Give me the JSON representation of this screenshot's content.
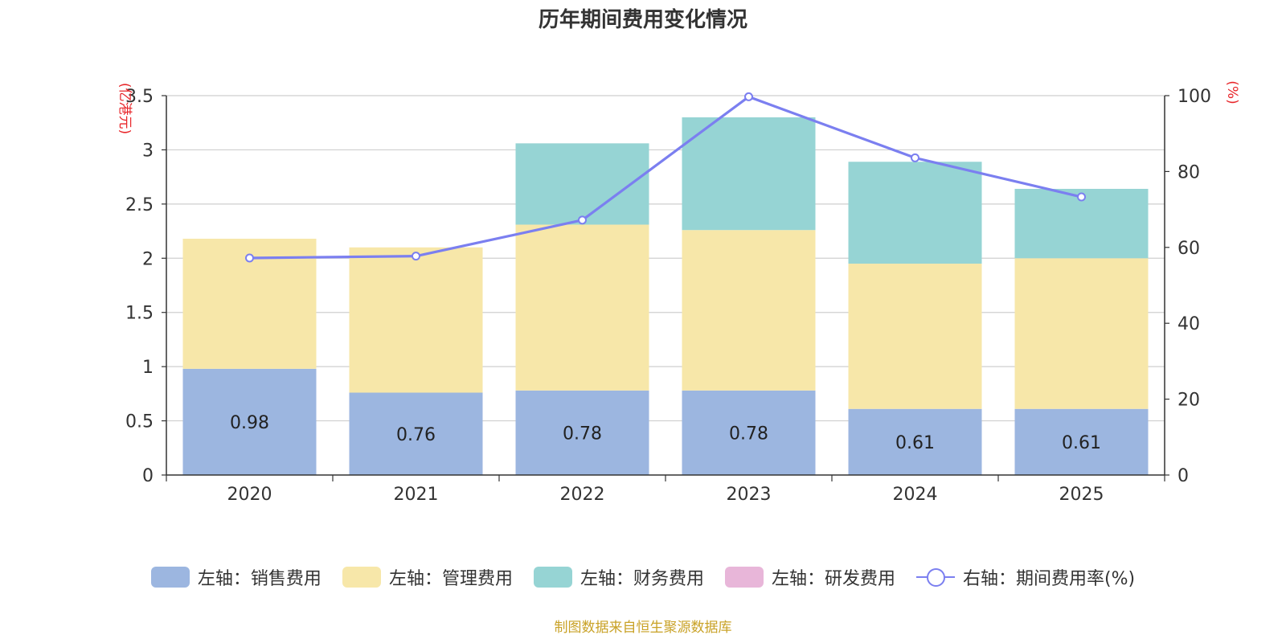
{
  "chart_data": {
    "type": "bar",
    "title": "历年期间费用变化情况",
    "categories": [
      "2020",
      "2021",
      "2022",
      "2023",
      "2024",
      "2025"
    ],
    "series": [
      {
        "name": "左轴：销售费用",
        "axis": "left",
        "kind": "bar",
        "color": "#9cb6e0",
        "values": [
          0.98,
          0.76,
          0.78,
          0.78,
          0.61,
          0.61
        ],
        "labels": [
          "0.98",
          "0.76",
          "0.78",
          "0.78",
          "0.61",
          "0.61"
        ]
      },
      {
        "name": "左轴：管理费用",
        "axis": "left",
        "kind": "bar",
        "color": "#f7e7a9",
        "values": [
          1.2,
          1.34,
          1.53,
          1.48,
          1.34,
          1.39
        ]
      },
      {
        "name": "左轴：财务费用",
        "axis": "left",
        "kind": "bar",
        "color": "#96d4d4",
        "values": [
          0,
          0,
          0.75,
          1.04,
          0.94,
          0.64
        ]
      },
      {
        "name": "左轴：研发费用",
        "axis": "left",
        "kind": "bar",
        "color": "#e8b6d9",
        "values": [
          0,
          0,
          0,
          0,
          0,
          0
        ]
      },
      {
        "name": "右轴：期间费用率(%)",
        "axis": "right",
        "kind": "line",
        "color": "#7b7ff0",
        "values": [
          57.2,
          57.7,
          67.2,
          99.7,
          83.6,
          73.3
        ]
      }
    ],
    "y_left": {
      "label": "(亿港元)",
      "range": [
        0,
        3.5
      ],
      "ticks": [
        0,
        0.5,
        1,
        1.5,
        2,
        2.5,
        3,
        3.5
      ],
      "tick_labels": [
        "0",
        "0.5",
        "1",
        "1.5",
        "2",
        "2.5",
        "3",
        "3.5"
      ]
    },
    "y_right": {
      "label": "(%)",
      "range": [
        0,
        100
      ],
      "ticks": [
        0,
        20,
        40,
        60,
        80,
        100
      ],
      "tick_labels": [
        "0",
        "20",
        "40",
        "60",
        "80",
        "100"
      ]
    },
    "grid": true,
    "legend_position": "bottom",
    "source_note": "制图数据来自恒生聚源数据库"
  }
}
